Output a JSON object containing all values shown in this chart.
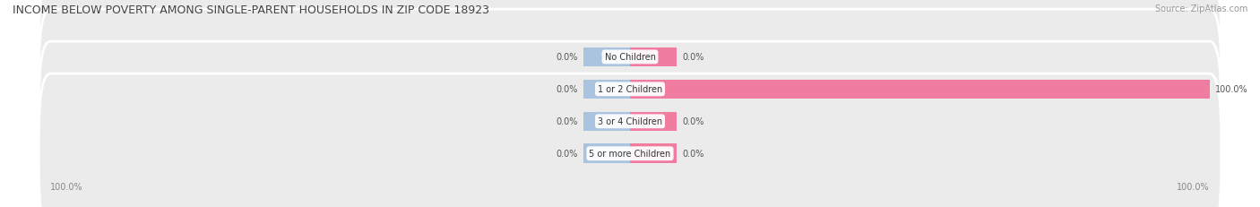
{
  "title": "INCOME BELOW POVERTY AMONG SINGLE-PARENT HOUSEHOLDS IN ZIP CODE 18923",
  "source": "Source: ZipAtlas.com",
  "categories": [
    "No Children",
    "1 or 2 Children",
    "3 or 4 Children",
    "5 or more Children"
  ],
  "single_father": [
    0.0,
    0.0,
    0.0,
    0.0
  ],
  "single_mother": [
    0.0,
    100.0,
    0.0,
    0.0
  ],
  "father_color": "#aac4df",
  "mother_color": "#f07ca0",
  "row_bg_color": "#ebebeb",
  "row_sep_color": "#ffffff",
  "axis_label_left": "100.0%",
  "axis_label_right": "100.0%",
  "xlim_left": -100,
  "xlim_right": 100,
  "stub_size": 8,
  "bar_height": 0.6,
  "title_fontsize": 9,
  "source_fontsize": 7,
  "label_fontsize": 7,
  "category_fontsize": 7
}
